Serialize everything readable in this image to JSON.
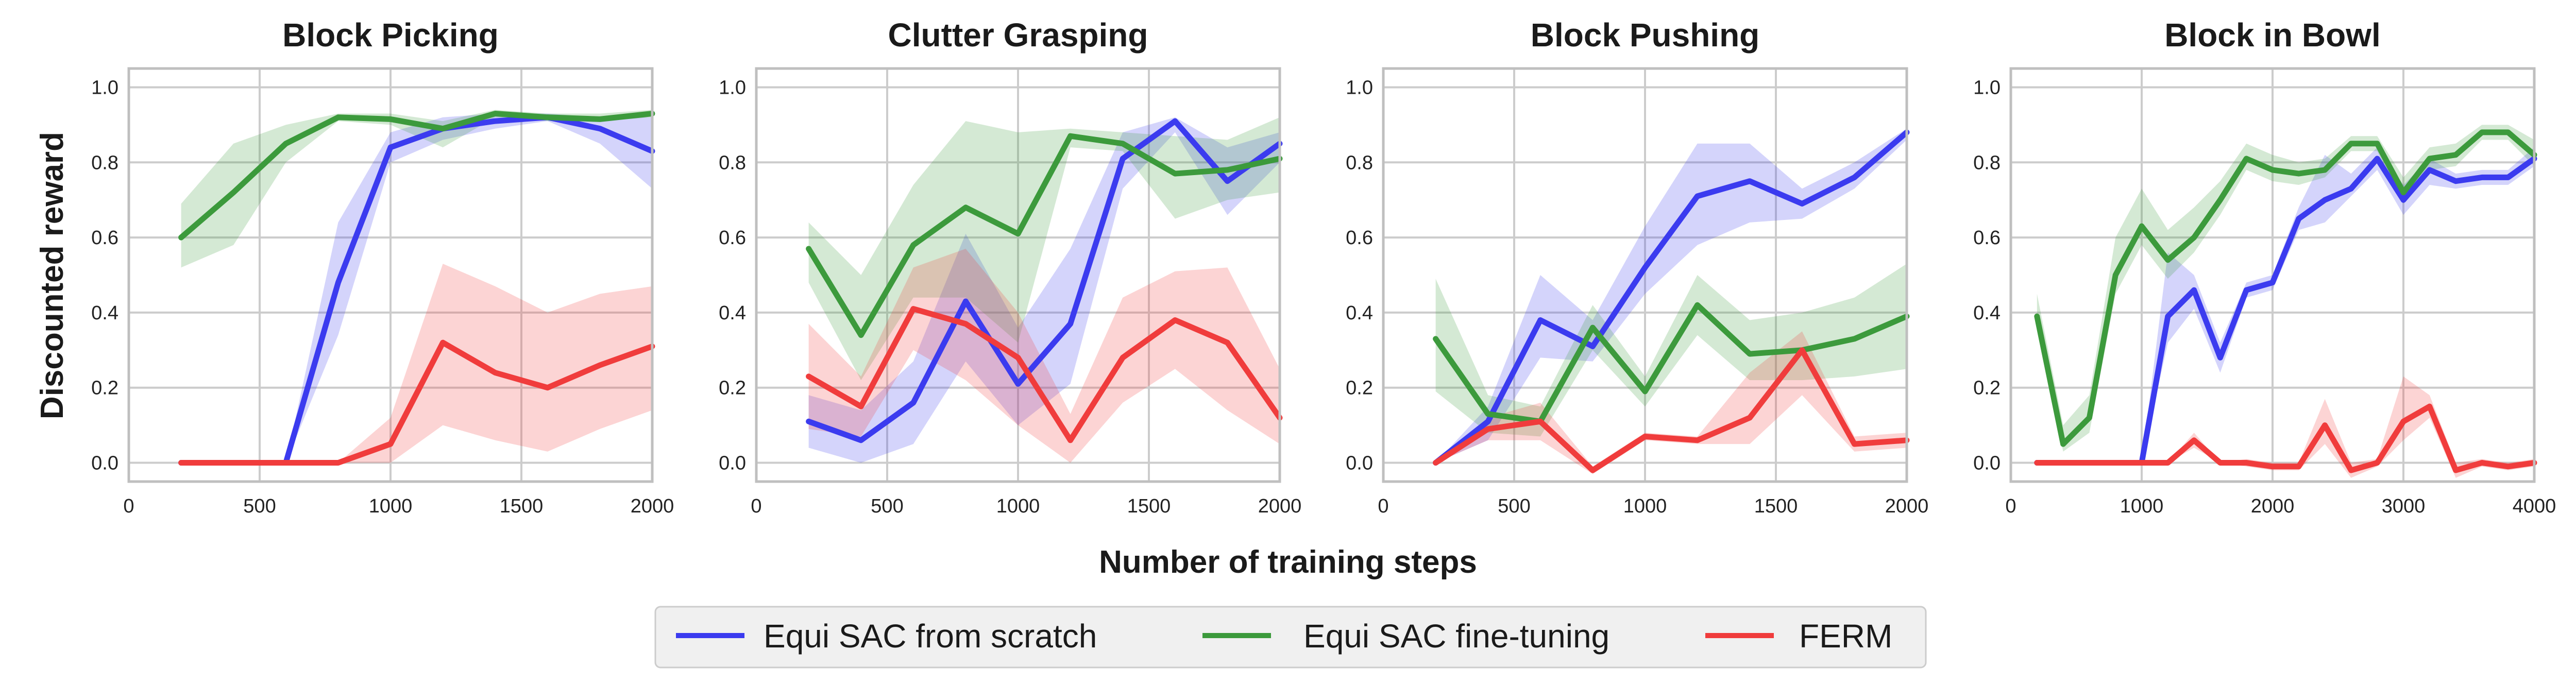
{
  "figure": {
    "ylabel": "Discounted reward",
    "xlabel": "Number of training steps"
  },
  "legend": [
    {
      "name": "Equi SAC from scratch",
      "color": "#3b3bef"
    },
    {
      "name": "Equi SAC fine-tuning",
      "color": "#3c9a3c"
    },
    {
      "name": "FERM",
      "color": "#f03c3c"
    }
  ],
  "colors": {
    "grid": "#cccccc",
    "frame": "#bfbfbf",
    "legend_bg": "#f0f0f0"
  },
  "chart_data": [
    {
      "type": "line",
      "title": "Block Picking",
      "xlim": [
        0,
        2000
      ],
      "ylim": [
        -0.05,
        1.05
      ],
      "xticks": [
        0,
        500,
        1000,
        1500,
        2000
      ],
      "yticks": [
        0.0,
        0.2,
        0.4,
        0.6,
        0.8,
        1.0
      ],
      "x": [
        200,
        400,
        600,
        800,
        1000,
        1200,
        1400,
        1600,
        1800,
        2000
      ],
      "series": [
        {
          "name": "Equi SAC from scratch",
          "mean": [
            0,
            0,
            0,
            0.48,
            0.84,
            0.89,
            0.91,
            0.92,
            0.89,
            0.83
          ],
          "lower": [
            0,
            0,
            0,
            0.34,
            0.8,
            0.86,
            0.89,
            0.91,
            0.85,
            0.73
          ],
          "upper": [
            0,
            0,
            0,
            0.64,
            0.88,
            0.92,
            0.93,
            0.93,
            0.92,
            0.92
          ]
        },
        {
          "name": "Equi SAC fine-tuning",
          "mean": [
            0.6,
            0.72,
            0.85,
            0.92,
            0.915,
            0.89,
            0.93,
            0.92,
            0.915,
            0.93
          ],
          "lower": [
            0.52,
            0.58,
            0.8,
            0.91,
            0.9,
            0.84,
            0.92,
            0.91,
            0.91,
            0.92
          ],
          "upper": [
            0.69,
            0.85,
            0.9,
            0.93,
            0.93,
            0.91,
            0.94,
            0.93,
            0.93,
            0.94
          ]
        },
        {
          "name": "FERM",
          "mean": [
            0,
            0,
            0,
            0,
            0.05,
            0.32,
            0.24,
            0.2,
            0.26,
            0.31
          ],
          "lower": [
            0,
            0,
            0,
            0,
            0,
            0.1,
            0.06,
            0.03,
            0.09,
            0.14
          ],
          "upper": [
            0,
            0,
            0,
            0,
            0.12,
            0.53,
            0.47,
            0.4,
            0.45,
            0.47
          ]
        }
      ]
    },
    {
      "type": "line",
      "title": "Clutter Grasping",
      "xlim": [
        0,
        2000
      ],
      "ylim": [
        -0.05,
        1.05
      ],
      "xticks": [
        0,
        500,
        1000,
        1500,
        2000
      ],
      "yticks": [
        0.0,
        0.2,
        0.4,
        0.6,
        0.8,
        1.0
      ],
      "x": [
        200,
        400,
        600,
        800,
        1000,
        1200,
        1400,
        1600,
        1800,
        2000
      ],
      "series": [
        {
          "name": "Equi SAC from scratch",
          "mean": [
            0.11,
            0.06,
            0.16,
            0.43,
            0.21,
            0.37,
            0.81,
            0.91,
            0.75,
            0.85
          ],
          "lower": [
            0.04,
            0.0,
            0.05,
            0.27,
            0.1,
            0.21,
            0.73,
            0.88,
            0.66,
            0.8
          ],
          "upper": [
            0.18,
            0.14,
            0.27,
            0.61,
            0.36,
            0.57,
            0.88,
            0.92,
            0.84,
            0.88
          ]
        },
        {
          "name": "Equi SAC fine-tuning",
          "mean": [
            0.57,
            0.34,
            0.58,
            0.68,
            0.61,
            0.87,
            0.85,
            0.77,
            0.78,
            0.81
          ],
          "lower": [
            0.48,
            0.22,
            0.44,
            0.44,
            0.32,
            0.84,
            0.83,
            0.65,
            0.7,
            0.72
          ],
          "upper": [
            0.64,
            0.5,
            0.74,
            0.91,
            0.88,
            0.89,
            0.88,
            0.87,
            0.86,
            0.92
          ]
        },
        {
          "name": "FERM",
          "mean": [
            0.23,
            0.15,
            0.41,
            0.37,
            0.28,
            0.06,
            0.28,
            0.38,
            0.32,
            0.12
          ],
          "lower": [
            0.09,
            0.07,
            0.3,
            0.22,
            0.1,
            0.0,
            0.16,
            0.25,
            0.14,
            0.05
          ],
          "upper": [
            0.37,
            0.23,
            0.52,
            0.57,
            0.4,
            0.13,
            0.44,
            0.51,
            0.52,
            0.25
          ]
        }
      ]
    },
    {
      "type": "line",
      "title": "Block Pushing",
      "xlim": [
        0,
        2000
      ],
      "ylim": [
        -0.05,
        1.05
      ],
      "xticks": [
        0,
        500,
        1000,
        1500,
        2000
      ],
      "yticks": [
        0.0,
        0.2,
        0.4,
        0.6,
        0.8,
        1.0
      ],
      "x": [
        200,
        400,
        600,
        800,
        1000,
        1200,
        1400,
        1600,
        1800,
        2000
      ],
      "series": [
        {
          "name": "Equi SAC from scratch",
          "mean": [
            0,
            0.11,
            0.38,
            0.31,
            0.52,
            0.71,
            0.75,
            0.69,
            0.76,
            0.88
          ],
          "lower": [
            0,
            0.06,
            0.28,
            0.27,
            0.45,
            0.58,
            0.64,
            0.65,
            0.73,
            0.86
          ],
          "upper": [
            0,
            0.15,
            0.5,
            0.38,
            0.63,
            0.85,
            0.85,
            0.73,
            0.8,
            0.89
          ]
        },
        {
          "name": "Equi SAC fine-tuning",
          "mean": [
            0.33,
            0.13,
            0.11,
            0.36,
            0.19,
            0.42,
            0.29,
            0.3,
            0.33,
            0.39
          ],
          "lower": [
            0.19,
            0.08,
            0.07,
            0.3,
            0.15,
            0.34,
            0.22,
            0.22,
            0.23,
            0.25
          ],
          "upper": [
            0.49,
            0.18,
            0.15,
            0.42,
            0.23,
            0.5,
            0.38,
            0.4,
            0.44,
            0.53
          ]
        },
        {
          "name": "FERM",
          "mean": [
            0,
            0.09,
            0.11,
            -0.02,
            0.07,
            0.06,
            0.12,
            0.3,
            0.05,
            0.06
          ],
          "lower": [
            0,
            0.06,
            0.06,
            -0.03,
            0.06,
            0.05,
            0.05,
            0.18,
            0.03,
            0.04
          ],
          "upper": [
            0,
            0.12,
            0.16,
            -0.01,
            0.08,
            0.07,
            0.24,
            0.35,
            0.07,
            0.08
          ]
        }
      ]
    },
    {
      "type": "line",
      "title": "Block in Bowl",
      "xlim": [
        0,
        4000
      ],
      "ylim": [
        -0.05,
        1.05
      ],
      "xticks": [
        0,
        1000,
        2000,
        3000,
        4000
      ],
      "yticks": [
        0.0,
        0.2,
        0.4,
        0.6,
        0.8,
        1.0
      ],
      "x": [
        200,
        400,
        600,
        800,
        1000,
        1200,
        1400,
        1600,
        1800,
        2000,
        2200,
        2400,
        2600,
        2800,
        3000,
        3200,
        3400,
        3600,
        3800,
        4000
      ],
      "series": [
        {
          "name": "Equi SAC from scratch",
          "mean": [
            0,
            0,
            0,
            0,
            0,
            0.39,
            0.46,
            0.28,
            0.46,
            0.48,
            0.65,
            0.7,
            0.73,
            0.81,
            0.7,
            0.78,
            0.75,
            0.76,
            0.76,
            0.81
          ],
          "lower": [
            0,
            0,
            0,
            0,
            0,
            0.32,
            0.41,
            0.24,
            0.44,
            0.46,
            0.62,
            0.64,
            0.71,
            0.78,
            0.66,
            0.74,
            0.73,
            0.74,
            0.74,
            0.79
          ],
          "upper": [
            0,
            0,
            0,
            0,
            0,
            0.56,
            0.5,
            0.32,
            0.48,
            0.5,
            0.68,
            0.82,
            0.77,
            0.84,
            0.74,
            0.81,
            0.77,
            0.78,
            0.78,
            0.84
          ]
        },
        {
          "name": "Equi SAC fine-tuning",
          "mean": [
            0.39,
            0.05,
            0.12,
            0.5,
            0.63,
            0.54,
            0.6,
            0.7,
            0.81,
            0.78,
            0.77,
            0.78,
            0.85,
            0.85,
            0.72,
            0.81,
            0.82,
            0.88,
            0.88,
            0.82
          ],
          "lower": [
            0.36,
            0.03,
            0.08,
            0.45,
            0.58,
            0.49,
            0.56,
            0.66,
            0.78,
            0.75,
            0.74,
            0.76,
            0.83,
            0.83,
            0.69,
            0.78,
            0.79,
            0.86,
            0.86,
            0.79
          ],
          "upper": [
            0.45,
            0.1,
            0.18,
            0.6,
            0.73,
            0.62,
            0.68,
            0.75,
            0.85,
            0.82,
            0.8,
            0.81,
            0.87,
            0.87,
            0.76,
            0.84,
            0.85,
            0.9,
            0.9,
            0.86
          ]
        },
        {
          "name": "FERM",
          "mean": [
            0,
            0,
            0,
            0,
            0,
            0,
            0.06,
            0,
            0,
            -0.01,
            -0.01,
            0.1,
            -0.02,
            0,
            0.11,
            0.15,
            -0.02,
            0,
            -0.01,
            0
          ],
          "lower": [
            0,
            0,
            0,
            0,
            0,
            0,
            0.04,
            0,
            -0.01,
            -0.02,
            -0.02,
            0.05,
            -0.04,
            -0.01,
            0.06,
            0.12,
            -0.04,
            -0.01,
            -0.02,
            -0.01
          ],
          "upper": [
            0,
            0,
            0,
            0,
            0,
            0,
            0.08,
            0,
            0.01,
            0,
            0,
            0.17,
            0,
            0.01,
            0.23,
            0.18,
            0,
            0.01,
            0,
            0.01
          ]
        }
      ]
    }
  ]
}
